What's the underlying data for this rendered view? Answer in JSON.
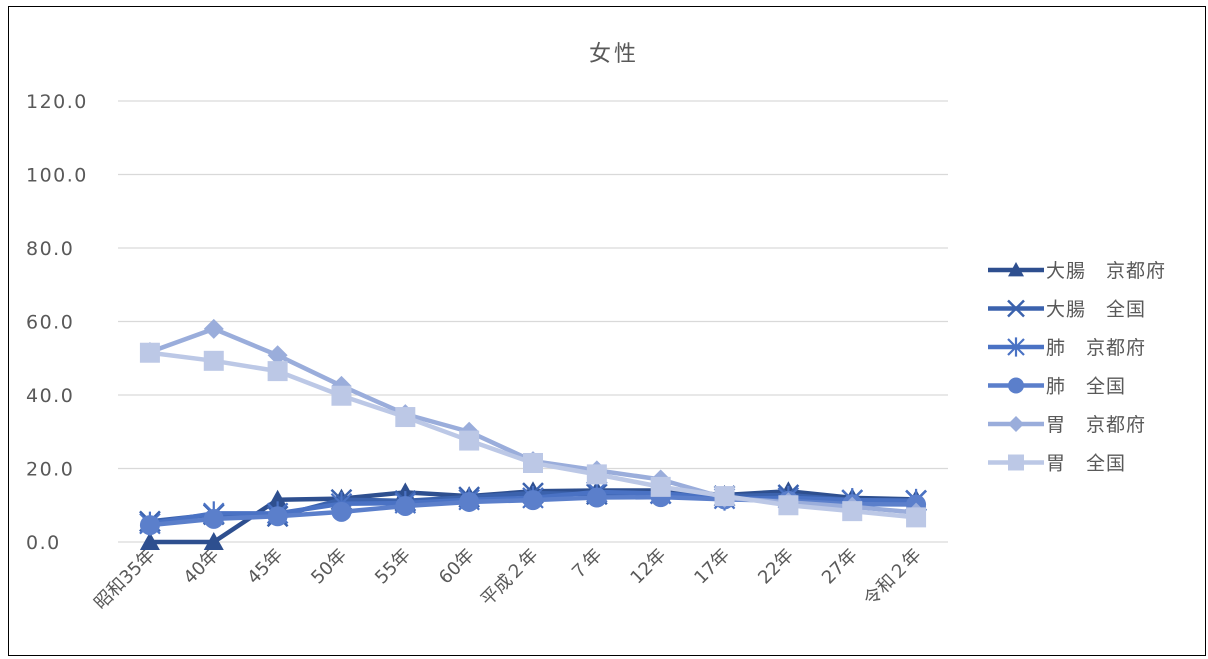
{
  "chart_data": {
    "type": "line",
    "title": "女性",
    "xlabel": "",
    "ylabel": "",
    "ylim": [
      0,
      120
    ],
    "yticks": [
      "0.0",
      "20.0",
      "40.0",
      "60.0",
      "80.0",
      "100.0",
      "120.0"
    ],
    "grid": true,
    "legend_position": "right",
    "categories": [
      "昭和35年",
      "40年",
      "45年",
      "50年",
      "55年",
      "60年",
      "平成２年",
      "７年",
      "12年",
      "17年",
      "22年",
      "27年",
      "令和２年"
    ],
    "series": [
      {
        "name": "大腸　京都府",
        "marker": "triangle",
        "color": "#2e4f8f",
        "values": [
          0,
          0,
          11.5,
          11.8,
          13.5,
          12.5,
          13.8,
          14.0,
          14.0,
          12.8,
          13.8,
          12.0,
          11.6
        ]
      },
      {
        "name": "大腸　全国",
        "marker": "x",
        "color": "#3b62ad",
        "values": [
          5.6,
          7.5,
          7.0,
          11.5,
          11.2,
          12.2,
          13.3,
          13.0,
          13.2,
          12.5,
          12.8,
          11.4,
          11.3
        ]
      },
      {
        "name": "肺　京都府",
        "marker": "asterisk",
        "color": "#4a72c4",
        "values": [
          5.0,
          7.8,
          7.8,
          10.4,
          10.6,
          11.5,
          12.0,
          13.6,
          13.2,
          11.8,
          12.0,
          11.4,
          11.2
        ]
      },
      {
        "name": "肺　全国",
        "marker": "circle",
        "color": "#5b7fcb",
        "values": [
          4.6,
          6.3,
          7.0,
          8.2,
          9.8,
          10.9,
          11.4,
          12.1,
          12.2,
          11.6,
          11.2,
          10.3,
          10.2
        ]
      },
      {
        "name": "胃　京都府",
        "marker": "diamond",
        "color": "#9aaddb",
        "values": [
          51.7,
          58.0,
          50.8,
          42.5,
          34.8,
          30.0,
          22.0,
          19.5,
          17.0,
          12.0,
          10.8,
          9.6,
          8.0
        ]
      },
      {
        "name": "胃　全国",
        "marker": "square",
        "color": "#bcc8e6",
        "values": [
          51.5,
          49.3,
          46.5,
          39.8,
          34.0,
          27.6,
          21.5,
          18.4,
          15.0,
          12.5,
          10.0,
          8.4,
          6.7
        ]
      }
    ]
  }
}
